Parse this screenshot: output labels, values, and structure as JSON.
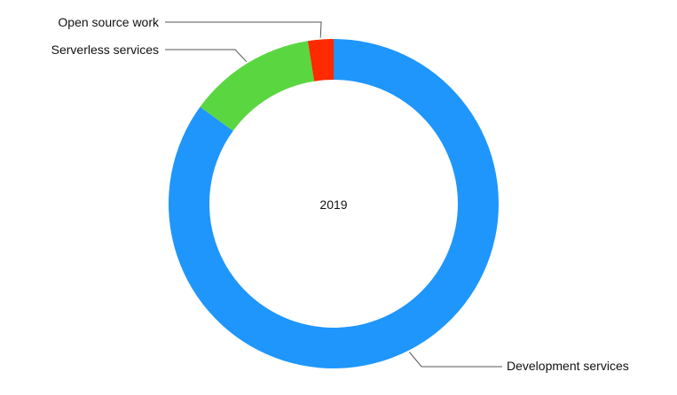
{
  "chart_data": {
    "type": "pie",
    "variant": "donut",
    "center_label": "2019",
    "categories": [
      "Development services",
      "Open source work",
      "Serverless services"
    ],
    "values": [
      85,
      2.5,
      12.5
    ],
    "colors": [
      "#1e96fc",
      "#ff2a00",
      "#5ad641"
    ],
    "legend": "none",
    "data_labels": "outside with leader lines"
  }
}
